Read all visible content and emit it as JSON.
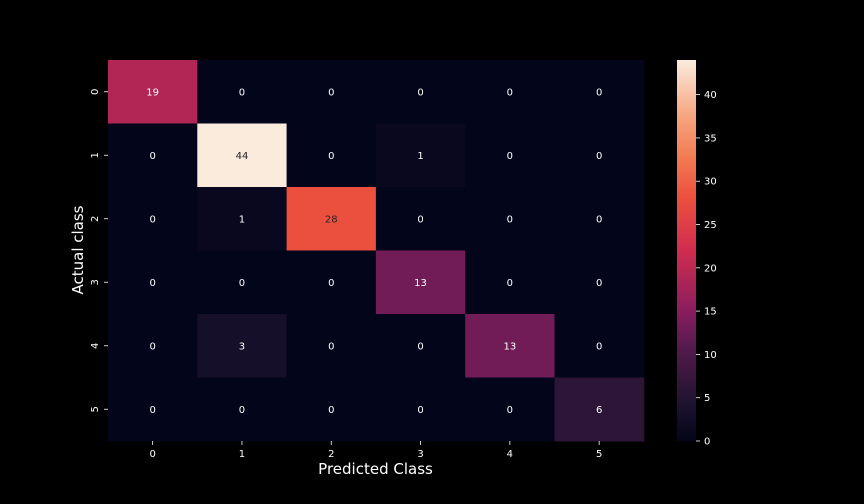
{
  "chart_data": {
    "type": "heatmap",
    "x_tick_labels": [
      "0",
      "1",
      "2",
      "3",
      "4",
      "5"
    ],
    "y_tick_labels": [
      "0",
      "1",
      "2",
      "3",
      "4",
      "5"
    ],
    "values": [
      [
        19,
        0,
        0,
        0,
        0,
        0
      ],
      [
        0,
        44,
        0,
        1,
        0,
        0
      ],
      [
        0,
        1,
        28,
        0,
        0,
        0
      ],
      [
        0,
        0,
        0,
        13,
        0,
        0
      ],
      [
        0,
        3,
        0,
        0,
        13,
        0
      ],
      [
        0,
        0,
        0,
        0,
        0,
        6
      ]
    ],
    "xlabel": "Predicted Class",
    "ylabel": "Actual class",
    "colorbar": {
      "range": [
        0,
        44
      ],
      "ticks": [
        "0",
        "5",
        "10",
        "15",
        "20",
        "25",
        "30",
        "35",
        "40"
      ],
      "colormap": "rocket"
    },
    "background": "#000000",
    "text_color": "#ffffff"
  }
}
